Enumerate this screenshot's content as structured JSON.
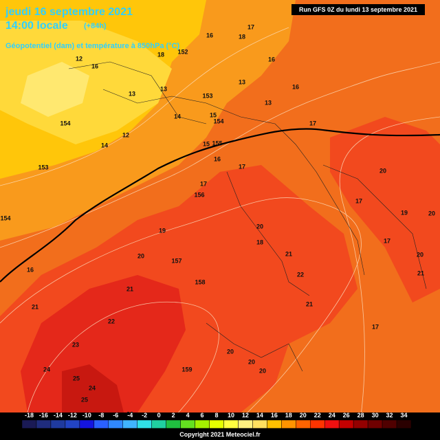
{
  "header": {
    "date": "jeudi 16 septembre 2021",
    "time": "14:00 locale",
    "lead": "(+84h)",
    "subtitle": "Géopotentiel (dam) et température à 850hPa (°C)",
    "run": "Run GFS 0Z du lundi 13 septembre 2021"
  },
  "map_labels": [
    "16",
    "18",
    "17",
    "12",
    "16",
    "18",
    "152",
    "16",
    "13",
    "13",
    "13",
    "16",
    "153",
    "13",
    "154",
    "14",
    "15",
    "154",
    "14",
    "12",
    "15",
    "155",
    "17",
    "153",
    "16",
    "17",
    "20",
    "17",
    "156",
    "17",
    "19",
    "20",
    "154",
    "19",
    "20",
    "18",
    "17",
    "20",
    "16",
    "20",
    "157",
    "21",
    "22",
    "158",
    "21",
    "21",
    "21",
    "21",
    "22",
    "17",
    "23",
    "20",
    "20",
    "159",
    "20",
    "24",
    "25",
    "24",
    "25",
    "23"
  ],
  "colorbar": {
    "labels": [
      "-18",
      "-16",
      "-14",
      "-12",
      "-10",
      "-8",
      "-6",
      "-4",
      "-2",
      "0",
      "2",
      "4",
      "6",
      "8",
      "10",
      "12",
      "14",
      "16",
      "18",
      "20",
      "22",
      "24",
      "26",
      "28",
      "30",
      "32",
      "34"
    ],
    "colors": [
      "#1a1a55",
      "#1f2c7d",
      "#1f3a9e",
      "#2244c4",
      "#1414e0",
      "#2a60ff",
      "#3088ff",
      "#40b4ff",
      "#30e0e6",
      "#20d0a0",
      "#20c040",
      "#64e020",
      "#a4f000",
      "#e4ff00",
      "#ffff40",
      "#fff080",
      "#ffe060",
      "#ffc000",
      "#ff9400",
      "#ff6400",
      "#ff3400",
      "#f01010",
      "#c40000",
      "#940000",
      "#700000",
      "#500000",
      "#2a0000"
    ]
  },
  "footer": "Copyright 2021 Meteociel.fr"
}
